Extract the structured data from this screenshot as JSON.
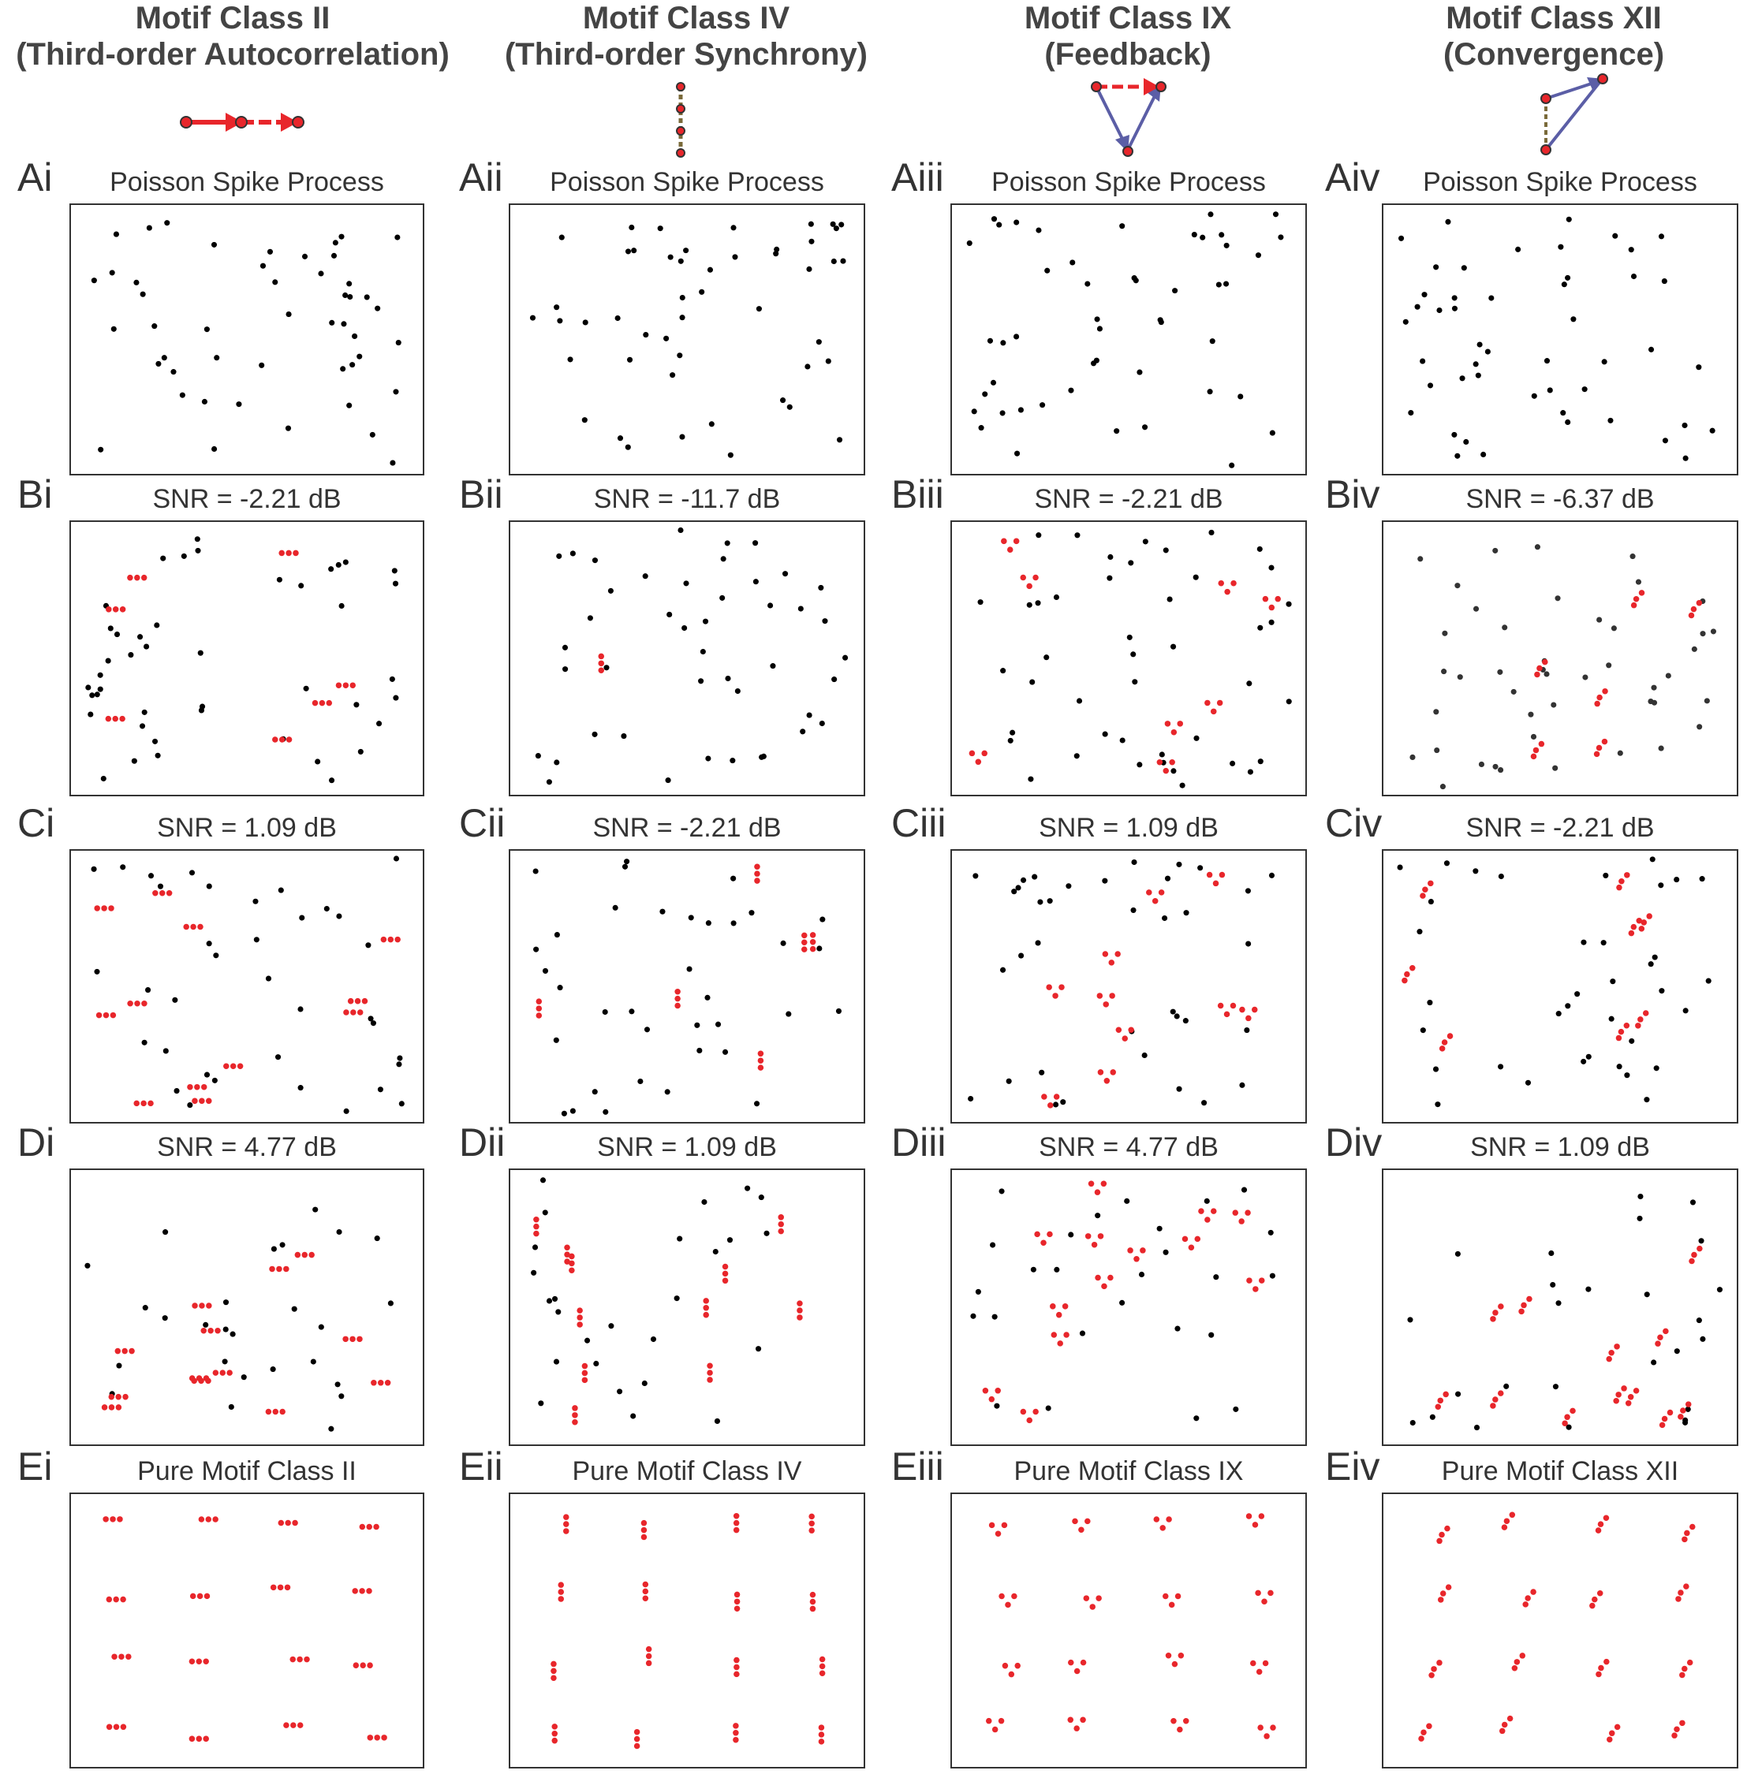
{
  "colors": {
    "motif": "#e8262b",
    "background_spike": "#000000",
    "feedback_arrow": "#5b5ea6",
    "sync_line": "#7a6a3a"
  },
  "columns": [
    {
      "key": "i",
      "header_line1": "Motif Class II",
      "header_line2": "(Third-order Autocorrelation)",
      "motif_icon": "chain-arrows-icon"
    },
    {
      "key": "ii",
      "header_line1": "Motif Class IV",
      "header_line2": "(Third-order Synchrony)",
      "motif_icon": "vertical-sync-icon"
    },
    {
      "key": "iii",
      "header_line1": "Motif Class IX",
      "header_line2": "(Feedback)",
      "motif_icon": "feedback-triangle-icon"
    },
    {
      "key": "iv",
      "header_line1": "Motif Class XII",
      "header_line2": "(Convergence)",
      "motif_icon": "convergence-icon"
    }
  ],
  "rows": [
    {
      "key": "A",
      "titles": [
        "Poisson Spike Process",
        "Poisson Spike Process",
        "Poisson Spike Process",
        "Poisson Spike Process"
      ],
      "labels": [
        "Ai",
        "Aii",
        "Aiii",
        "Aiv"
      ]
    },
    {
      "key": "B",
      "titles": [
        "SNR = -2.21 dB",
        "SNR = -11.7 dB",
        "SNR = -2.21 dB",
        "SNR = -6.37 dB"
      ],
      "labels": [
        "Bi",
        "Bii",
        "Biii",
        "Biv"
      ]
    },
    {
      "key": "C",
      "titles": [
        "SNR = 1.09 dB",
        "SNR = -2.21 dB",
        "SNR = 1.09 dB",
        "SNR = -2.21 dB"
      ],
      "labels": [
        "Ci",
        "Cii",
        "Ciii",
        "Civ"
      ]
    },
    {
      "key": "D",
      "titles": [
        "SNR = 4.77 dB",
        "SNR = 1.09 dB",
        "SNR = 4.77 dB",
        "SNR = 1.09 dB"
      ],
      "labels": [
        "Di",
        "Dii",
        "Diii",
        "Div"
      ]
    },
    {
      "key": "E",
      "titles": [
        "Pure Motif Class II",
        "Pure Motif Class IV",
        "Pure Motif Class IX",
        "Pure Motif Class XII"
      ],
      "labels": [
        "Ei",
        "Eii",
        "Eiii",
        "Eiv"
      ]
    }
  ],
  "panel_content": {
    "A": "poisson-background-only",
    "B": "background-plus-motifs",
    "C": "background-plus-motifs",
    "D": "background-plus-motifs",
    "E": "motifs-only"
  },
  "motif_counts": {
    "i": [
      0,
      7,
      12,
      13,
      16
    ],
    "ii": [
      0,
      1,
      6,
      11,
      16
    ],
    "iii": [
      0,
      8,
      10,
      13,
      16
    ],
    "iv": [
      0,
      6,
      8,
      12,
      16
    ]
  }
}
